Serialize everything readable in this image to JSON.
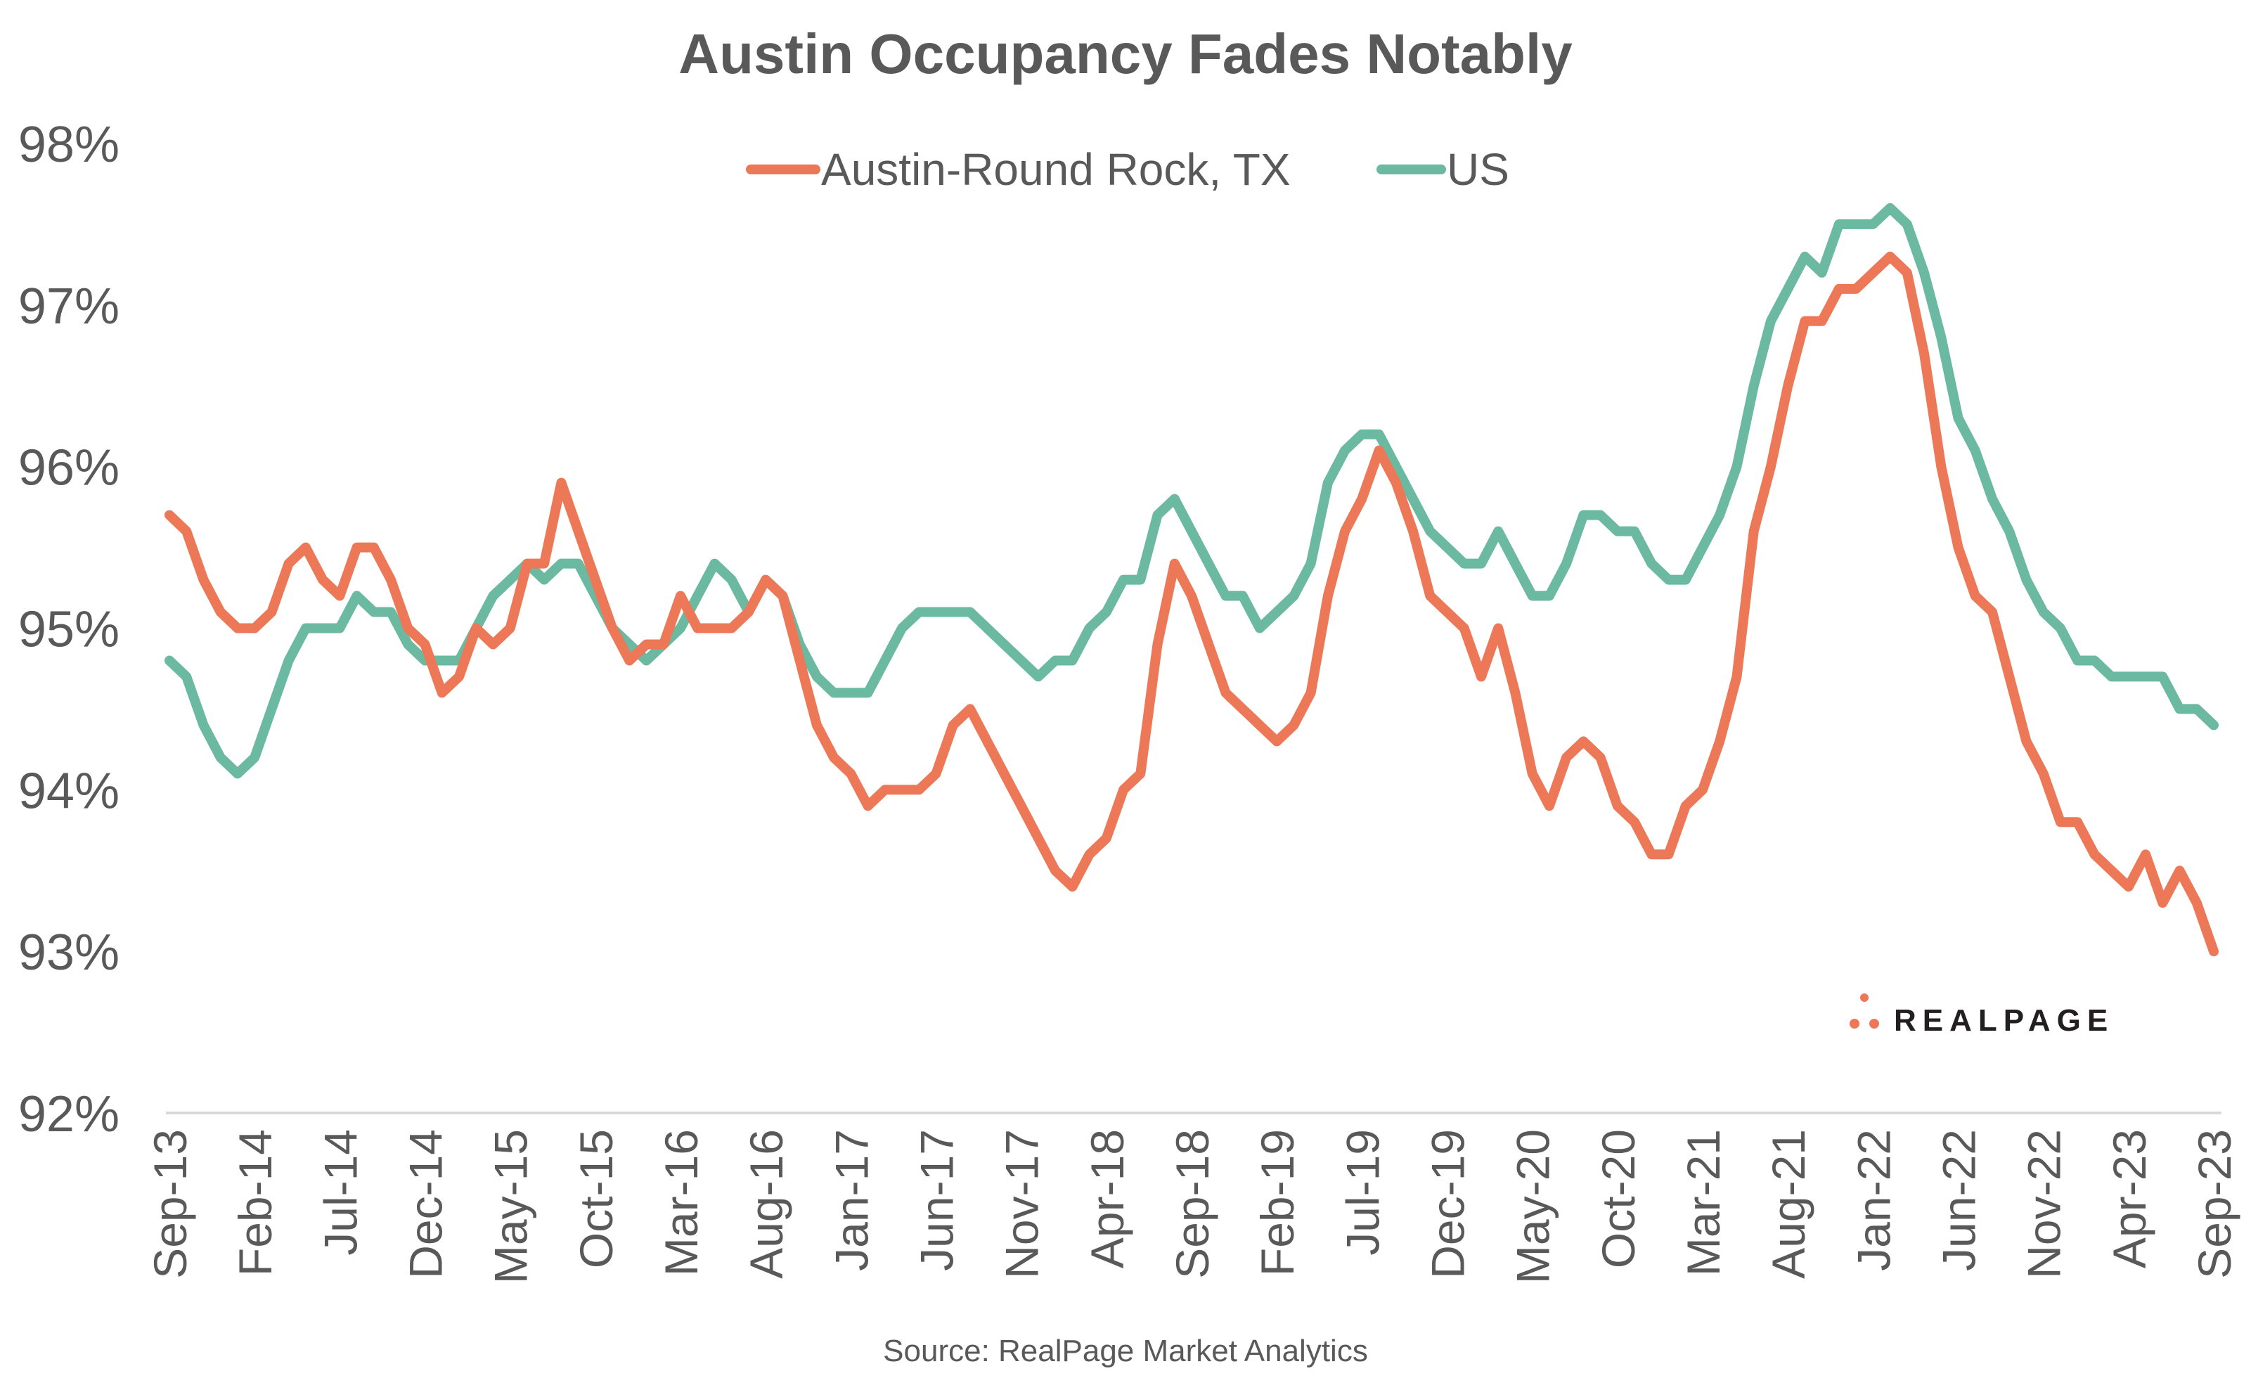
{
  "chart_data": {
    "type": "line",
    "title": "Austin Occupancy Fades Notably",
    "source": "Source: RealPage Market Analytics",
    "logo_text": "REALPAGE",
    "xlabel": "",
    "ylabel": "",
    "ylim": [
      92,
      98
    ],
    "yticks": [
      "92%",
      "93%",
      "94%",
      "95%",
      "96%",
      "97%",
      "98%"
    ],
    "ytick_values": [
      92,
      93,
      94,
      95,
      96,
      97,
      98
    ],
    "x_start": "Sep-13",
    "x_end": "Sep-23",
    "x_frequency": "monthly",
    "xtick_labels": [
      "Sep-13",
      "Feb-14",
      "Jul-14",
      "Dec-14",
      "May-15",
      "Oct-15",
      "Mar-16",
      "Aug-16",
      "Jan-17",
      "Jun-17",
      "Nov-17",
      "Apr-18",
      "Sep-18",
      "Feb-19",
      "Jul-19",
      "Dec-19",
      "May-20",
      "Oct-20",
      "Mar-21",
      "Aug-21",
      "Jan-22",
      "Jun-22",
      "Nov-22",
      "Apr-23",
      "Sep-23"
    ],
    "grid": false,
    "legend": "top-center",
    "series": [
      {
        "name": "Austin-Round Rock, TX",
        "color": "#EC7858",
        "values": [
          95.7,
          95.6,
          95.3,
          95.1,
          95.0,
          95.0,
          95.1,
          95.4,
          95.5,
          95.3,
          95.2,
          95.5,
          95.5,
          95.3,
          95.0,
          94.9,
          94.6,
          94.7,
          95.0,
          94.9,
          95.0,
          95.4,
          95.4,
          95.9,
          95.6,
          95.3,
          95.0,
          94.8,
          94.9,
          94.9,
          95.2,
          95.0,
          95.0,
          95.0,
          95.1,
          95.3,
          95.2,
          94.8,
          94.4,
          94.2,
          94.1,
          93.9,
          94.0,
          94.0,
          94.0,
          94.1,
          94.4,
          94.5,
          94.3,
          94.1,
          93.9,
          93.7,
          93.5,
          93.4,
          93.6,
          93.7,
          94.0,
          94.1,
          94.9,
          95.4,
          95.2,
          94.9,
          94.6,
          94.5,
          94.4,
          94.3,
          94.4,
          94.6,
          95.2,
          95.6,
          95.8,
          96.1,
          95.9,
          95.6,
          95.2,
          95.1,
          95.0,
          94.7,
          95.0,
          94.6,
          94.1,
          93.9,
          94.2,
          94.3,
          94.2,
          93.9,
          93.8,
          93.6,
          93.6,
          93.9,
          94.0,
          94.3,
          94.7,
          95.6,
          96.0,
          96.5,
          96.9,
          96.9,
          97.1,
          97.1,
          97.2,
          97.3,
          97.2,
          96.7,
          96.0,
          95.5,
          95.2,
          95.1,
          94.7,
          94.3,
          94.1,
          93.8,
          93.8,
          93.6,
          93.5,
          93.4,
          93.6,
          93.3,
          93.5,
          93.3,
          93.0
        ]
      },
      {
        "name": "US",
        "color": "#6BB9A0",
        "values": [
          94.8,
          94.7,
          94.4,
          94.2,
          94.1,
          94.2,
          94.5,
          94.8,
          95.0,
          95.0,
          95.0,
          95.2,
          95.1,
          95.1,
          94.9,
          94.8,
          94.8,
          94.8,
          95.0,
          95.2,
          95.3,
          95.4,
          95.3,
          95.4,
          95.4,
          95.2,
          95.0,
          94.9,
          94.8,
          94.9,
          95.0,
          95.2,
          95.4,
          95.3,
          95.1,
          95.3,
          95.2,
          94.9,
          94.7,
          94.6,
          94.6,
          94.6,
          94.8,
          95.0,
          95.1,
          95.1,
          95.1,
          95.1,
          95.0,
          94.9,
          94.8,
          94.7,
          94.8,
          94.8,
          95.0,
          95.1,
          95.3,
          95.3,
          95.7,
          95.8,
          95.6,
          95.4,
          95.2,
          95.2,
          95.0,
          95.1,
          95.2,
          95.4,
          95.9,
          96.1,
          96.2,
          96.2,
          96.0,
          95.8,
          95.6,
          95.5,
          95.4,
          95.4,
          95.6,
          95.4,
          95.2,
          95.2,
          95.4,
          95.7,
          95.7,
          95.6,
          95.6,
          95.4,
          95.3,
          95.3,
          95.5,
          95.7,
          96.0,
          96.5,
          96.9,
          97.1,
          97.3,
          97.2,
          97.5,
          97.5,
          97.5,
          97.6,
          97.5,
          97.2,
          96.8,
          96.3,
          96.1,
          95.8,
          95.6,
          95.3,
          95.1,
          95.0,
          94.8,
          94.8,
          94.7,
          94.7,
          94.7,
          94.7,
          94.5,
          94.5,
          94.4
        ]
      }
    ]
  }
}
